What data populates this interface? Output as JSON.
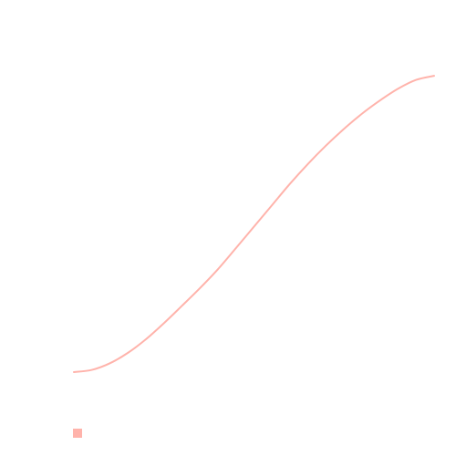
{
  "chart_data": {
    "type": "line",
    "x": [
      0,
      0.05,
      0.1,
      0.15,
      0.2,
      0.25,
      0.3,
      0.35,
      0.4,
      0.45,
      0.5,
      0.55,
      0.6,
      0.65,
      0.7,
      0.75,
      0.8,
      0.85,
      0.9,
      0.95,
      1
    ],
    "series": [
      {
        "color": "#FFB3AB",
        "values": [
          0,
          0.007,
          0.028,
          0.061,
          0.104,
          0.155,
          0.21,
          0.266,
          0.326,
          0.393,
          0.461,
          0.529,
          0.597,
          0.66,
          0.718,
          0.771,
          0.819,
          0.861,
          0.898,
          0.926,
          0.939
        ]
      }
    ],
    "xlim": [
      0,
      1
    ],
    "ylim": [
      0,
      1
    ],
    "grid": false,
    "legend": {
      "placement": "bottom-left",
      "marker": "square"
    }
  }
}
